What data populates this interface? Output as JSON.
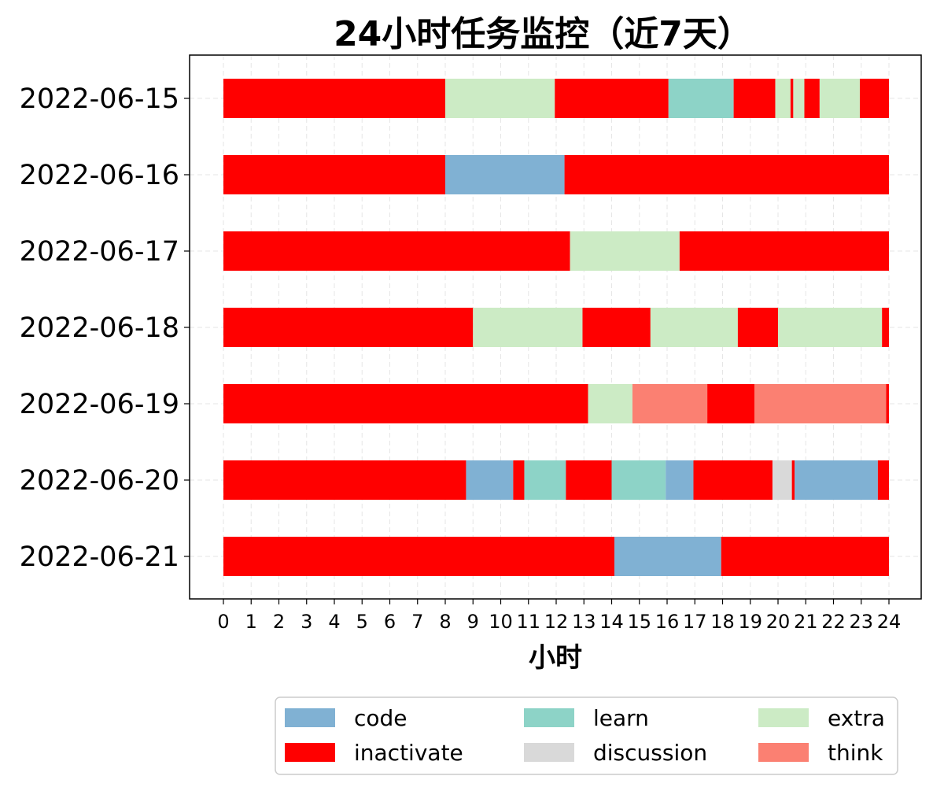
{
  "chart_data": {
    "type": "bar",
    "orientation": "horizontal-stacked",
    "title": "24小时任务监控（近7天）",
    "xlabel": "小时",
    "ylabel": "",
    "xlim": [
      0,
      24
    ],
    "xticks": [
      "0",
      "1",
      "2",
      "3",
      "4",
      "5",
      "6",
      "7",
      "8",
      "9",
      "10",
      "11",
      "12",
      "13",
      "14",
      "15",
      "16",
      "17",
      "18",
      "19",
      "20",
      "21",
      "22",
      "23",
      "24"
    ],
    "grid": true,
    "legend_position": "bottom-right",
    "categories": [
      "code",
      "inactivate",
      "learn",
      "discussion",
      "extra",
      "think"
    ],
    "colors": {
      "code": "#80b1d3",
      "inactivate": "#ff0000",
      "learn": "#8dd3c7",
      "discussion": "#d9d9d9",
      "extra": "#ccebc5",
      "think": "#fb8072"
    },
    "legend": [
      {
        "key": "code",
        "label": "code"
      },
      {
        "key": "learn",
        "label": "learn"
      },
      {
        "key": "extra",
        "label": "extra"
      },
      {
        "key": "inactivate",
        "label": "inactivate"
      },
      {
        "key": "discussion",
        "label": "discussion"
      },
      {
        "key": "think",
        "label": "think"
      }
    ],
    "days": [
      {
        "date": "2022-06-15",
        "segments": [
          {
            "start": 0,
            "end": 8.0,
            "category": "inactivate"
          },
          {
            "start": 8.0,
            "end": 11.95,
            "category": "extra"
          },
          {
            "start": 11.95,
            "end": 16.05,
            "category": "inactivate"
          },
          {
            "start": 16.05,
            "end": 18.4,
            "category": "learn"
          },
          {
            "start": 18.4,
            "end": 19.9,
            "category": "inactivate"
          },
          {
            "start": 19.9,
            "end": 20.45,
            "category": "extra"
          },
          {
            "start": 20.45,
            "end": 20.55,
            "category": "inactivate"
          },
          {
            "start": 20.55,
            "end": 20.95,
            "category": "extra"
          },
          {
            "start": 20.95,
            "end": 21.5,
            "category": "inactivate"
          },
          {
            "start": 21.5,
            "end": 22.95,
            "category": "extra"
          },
          {
            "start": 22.95,
            "end": 24.0,
            "category": "inactivate"
          }
        ]
      },
      {
        "date": "2022-06-16",
        "segments": [
          {
            "start": 0,
            "end": 8.0,
            "category": "inactivate"
          },
          {
            "start": 8.0,
            "end": 12.3,
            "category": "code"
          },
          {
            "start": 12.3,
            "end": 24.0,
            "category": "inactivate"
          }
        ]
      },
      {
        "date": "2022-06-17",
        "segments": [
          {
            "start": 0,
            "end": 12.5,
            "category": "inactivate"
          },
          {
            "start": 12.5,
            "end": 16.45,
            "category": "extra"
          },
          {
            "start": 16.45,
            "end": 24.0,
            "category": "inactivate"
          }
        ]
      },
      {
        "date": "2022-06-18",
        "segments": [
          {
            "start": 0,
            "end": 9.0,
            "category": "inactivate"
          },
          {
            "start": 9.0,
            "end": 12.95,
            "category": "extra"
          },
          {
            "start": 12.95,
            "end": 15.4,
            "category": "inactivate"
          },
          {
            "start": 15.4,
            "end": 18.55,
            "category": "extra"
          },
          {
            "start": 18.55,
            "end": 20.0,
            "category": "inactivate"
          },
          {
            "start": 20.0,
            "end": 23.75,
            "category": "extra"
          },
          {
            "start": 23.75,
            "end": 24.0,
            "category": "inactivate"
          }
        ]
      },
      {
        "date": "2022-06-19",
        "segments": [
          {
            "start": 0,
            "end": 13.15,
            "category": "inactivate"
          },
          {
            "start": 13.15,
            "end": 14.75,
            "category": "extra"
          },
          {
            "start": 14.75,
            "end": 17.45,
            "category": "think"
          },
          {
            "start": 17.45,
            "end": 19.15,
            "category": "inactivate"
          },
          {
            "start": 19.15,
            "end": 23.9,
            "category": "think"
          },
          {
            "start": 23.9,
            "end": 24.0,
            "category": "inactivate"
          }
        ]
      },
      {
        "date": "2022-06-20",
        "segments": [
          {
            "start": 0,
            "end": 8.75,
            "category": "inactivate"
          },
          {
            "start": 8.75,
            "end": 10.45,
            "category": "code"
          },
          {
            "start": 10.45,
            "end": 10.85,
            "category": "inactivate"
          },
          {
            "start": 10.85,
            "end": 12.35,
            "category": "learn"
          },
          {
            "start": 12.35,
            "end": 14.0,
            "category": "inactivate"
          },
          {
            "start": 14.0,
            "end": 15.95,
            "category": "learn"
          },
          {
            "start": 15.95,
            "end": 16.95,
            "category": "code"
          },
          {
            "start": 16.95,
            "end": 19.8,
            "category": "inactivate"
          },
          {
            "start": 19.8,
            "end": 20.5,
            "category": "discussion"
          },
          {
            "start": 20.5,
            "end": 20.6,
            "category": "inactivate"
          },
          {
            "start": 20.6,
            "end": 23.6,
            "category": "code"
          },
          {
            "start": 23.6,
            "end": 24.0,
            "category": "inactivate"
          }
        ]
      },
      {
        "date": "2022-06-21",
        "segments": [
          {
            "start": 0,
            "end": 14.1,
            "category": "inactivate"
          },
          {
            "start": 14.1,
            "end": 17.95,
            "category": "code"
          },
          {
            "start": 17.95,
            "end": 24.0,
            "category": "inactivate"
          }
        ]
      }
    ]
  }
}
